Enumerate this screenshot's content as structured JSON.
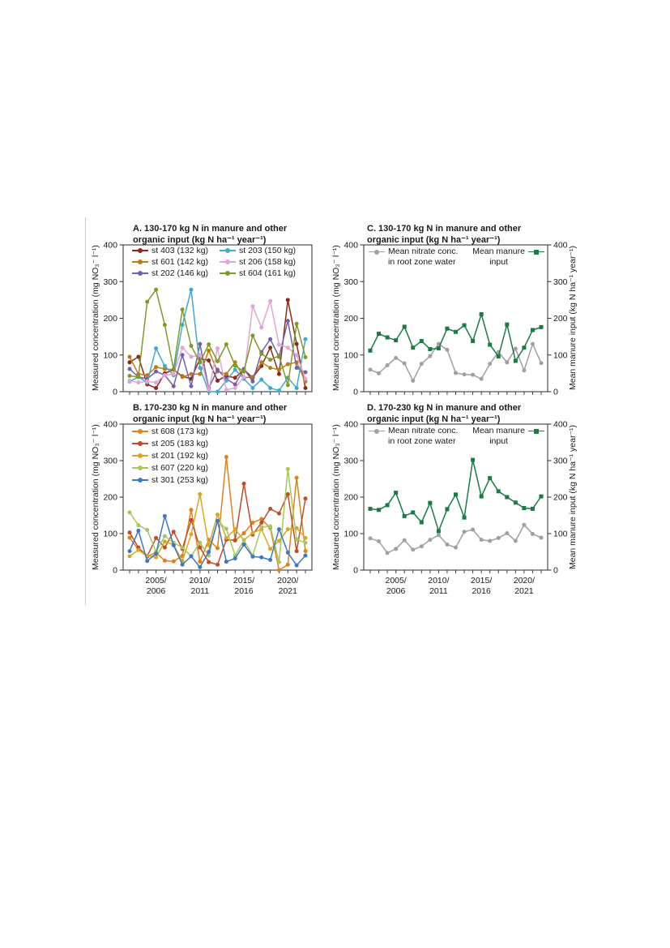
{
  "figure": {
    "background": "#ffffff",
    "axis_color": "#3d3d3d",
    "text_color": "#1a1a1a"
  },
  "chart_data": [
    {
      "panel": "A",
      "type": "line",
      "title_line1": "A. 130-170 kg N in manure and other",
      "title_line2": "organic input (kg N ha⁻¹ year⁻¹)",
      "ylabel": "Measured concentration (mg NO₃⁻ l⁻¹)",
      "ylim": [
        0,
        400
      ],
      "yticks": [
        0,
        100,
        200,
        300,
        400
      ],
      "n_points": 21,
      "x_labels_visible": false,
      "x_tick_labels": [],
      "legend_position": "top-inside-two-columns",
      "series": [
        {
          "name": "st 403 (132 kg)",
          "color": "#8B2A1A",
          "marker": "circle",
          "values": [
            80,
            95,
            20,
            10,
            50,
            60,
            42,
            35,
            90,
            85,
            30,
            43,
            38,
            60,
            38,
            70,
            120,
            48,
            250,
            130,
            10
          ]
        },
        {
          "name": "st 601 (142 kg)",
          "color": "#BE7B15",
          "marker": "circle",
          "values": [
            95,
            48,
            45,
            67,
            62,
            60,
            40,
            48,
            48,
            112,
            55,
            48,
            80,
            38,
            40,
            80,
            65,
            60,
            75,
            80,
            28
          ]
        },
        {
          "name": "st 202 (146 kg)",
          "color": "#7560A8",
          "marker": "circle",
          "values": [
            62,
            40,
            35,
            55,
            45,
            15,
            100,
            15,
            130,
            10,
            60,
            35,
            20,
            62,
            28,
            108,
            143,
            95,
            193,
            65,
            53
          ]
        },
        {
          "name": "st 203 (150 kg)",
          "color": "#41A9CE",
          "marker": "circle",
          "values": [
            28,
            40,
            25,
            118,
            70,
            45,
            182,
            278,
            65,
            0,
            0,
            30,
            60,
            35,
            10,
            33,
            10,
            3,
            38,
            10,
            143
          ]
        },
        {
          "name": "st 206 (158 kg)",
          "color": "#E2A6D6",
          "marker": "circle",
          "values": [
            30,
            25,
            28,
            25,
            45,
            48,
            120,
            95,
            100,
            5,
            118,
            5,
            10,
            40,
            233,
            175,
            247,
            128,
            120,
            100,
            35
          ]
        },
        {
          "name": "st 604 (161 kg)",
          "color": "#7E9B26",
          "marker": "circle",
          "values": [
            43,
            40,
            245,
            278,
            182,
            61,
            224,
            125,
            80,
            129,
            83,
            129,
            71,
            55,
            153,
            103,
            87,
            98,
            18,
            185,
            94
          ]
        }
      ]
    },
    {
      "panel": "B",
      "type": "line",
      "title_line1": "B. 170-230 kg N in manure and other",
      "title_line2": "organic input (kg N ha⁻¹ year⁻¹)",
      "ylabel": "Measured concentration (mg NO₃⁻ l⁻¹)",
      "ylim": [
        0,
        400
      ],
      "yticks": [
        0,
        100,
        200,
        300,
        400
      ],
      "n_points": 21,
      "x_labels_visible": true,
      "x_tick_labels": [
        {
          "index": 3,
          "line1": "2005/",
          "line2": "2006"
        },
        {
          "index": 8,
          "line1": "2010/",
          "line2": "2011"
        },
        {
          "index": 13,
          "line1": "2015/",
          "line2": "2016"
        },
        {
          "index": 18,
          "line1": "2020/",
          "line2": "2021"
        }
      ],
      "legend_position": "top-left-inside-one-column",
      "series": [
        {
          "name": "st 608 (173 kg)",
          "color": "#E08119",
          "marker": "circle",
          "values": [
            89,
            56,
            37,
            48,
            26,
            24,
            39,
            165,
            23,
            83,
            60,
            310,
            81,
            101,
            130,
            140,
            115,
            0,
            15,
            253,
            52
          ]
        },
        {
          "name": "st 205 (183 kg)",
          "color": "#C64A28",
          "marker": "circle",
          "values": [
            103,
            62,
            38,
            88,
            62,
            105,
            58,
            137,
            62,
            22,
            15,
            83,
            82,
            237,
            97,
            130,
            168,
            155,
            208,
            52,
            196
          ]
        },
        {
          "name": "st 201 (192 kg)",
          "color": "#D8A723",
          "marker": "circle",
          "values": [
            38,
            55,
            40,
            35,
            78,
            70,
            25,
            98,
            208,
            68,
            152,
            88,
            112,
            82,
            102,
            112,
            58,
            80,
            112,
            115,
            88
          ]
        },
        {
          "name": "st 607 (220 kg)",
          "color": "#A5C85A",
          "marker": "circle",
          "values": [
            158,
            123,
            110,
            50,
            93,
            75,
            62,
            38,
            75,
            40,
            135,
            113,
            40,
            82,
            40,
            118,
            120,
            22,
            277,
            84,
            75
          ]
        },
        {
          "name": "st 301 (253 kg)",
          "color": "#3F78C1",
          "marker": "circle",
          "values": [
            52,
            108,
            25,
            45,
            148,
            68,
            15,
            38,
            8,
            50,
            135,
            23,
            32,
            70,
            37,
            35,
            28,
            112,
            48,
            13,
            40
          ]
        }
      ]
    },
    {
      "panel": "C",
      "type": "line",
      "title_line1": "C. 130-170 kg N in manure and other",
      "title_line2": "organic input (kg N ha⁻¹ year⁻¹)",
      "ylabel": "Measured concentration (mg NO₃⁻ l⁻¹)",
      "y2label": "Mean manure input (kg N ha⁻¹ year⁻¹)",
      "ylim": [
        0,
        400
      ],
      "yticks": [
        0,
        100,
        200,
        300,
        400
      ],
      "n_points": 21,
      "x_labels_visible": false,
      "x_tick_labels": [],
      "legend_position": "top-inside-split",
      "series": [
        {
          "name": "Mean nitrate conc. in root zone water",
          "name_lines": [
            "Mean nitrate conc.",
            "in root zone water"
          ],
          "color": "#A0A0A0",
          "marker": "circle",
          "values": [
            60,
            50,
            72,
            92,
            77,
            30,
            76,
            97,
            130,
            114,
            51,
            47,
            46,
            35,
            76,
            108,
            80,
            117,
            58,
            130,
            78
          ]
        },
        {
          "name": "Mean manure input",
          "name_lines": [
            "Mean manure",
            "input"
          ],
          "color": "#1B7B45",
          "marker": "square",
          "values": [
            112,
            158,
            148,
            140,
            177,
            120,
            138,
            116,
            118,
            172,
            163,
            181,
            138,
            211,
            128,
            96,
            183,
            84,
            120,
            168,
            176
          ]
        }
      ]
    },
    {
      "panel": "D",
      "type": "line",
      "title_line1": "D. 170-230 kg N in manure and other",
      "title_line2": "organic input (kg N ha⁻¹ year⁻¹)",
      "ylabel": "Measured concentration (mg NO₃⁻ l⁻¹)",
      "y2label": "Mean manure input (kg N ha⁻¹ year⁻¹)",
      "ylim": [
        0,
        400
      ],
      "yticks": [
        0,
        100,
        200,
        300,
        400
      ],
      "n_points": 21,
      "x_labels_visible": true,
      "x_tick_labels": [
        {
          "index": 3,
          "line1": "2005/",
          "line2": "2006"
        },
        {
          "index": 8,
          "line1": "2010/",
          "line2": "2011"
        },
        {
          "index": 13,
          "line1": "2015/",
          "line2": "2016"
        },
        {
          "index": 18,
          "line1": "2020/",
          "line2": "2021"
        }
      ],
      "legend_position": "top-inside-split",
      "series": [
        {
          "name": "Mean nitrate conc. in root zone water",
          "name_lines": [
            "Mean nitrate conc.",
            "in root zone water"
          ],
          "color": "#A0A0A0",
          "marker": "circle",
          "values": [
            87,
            79,
            47,
            58,
            82,
            56,
            65,
            83,
            96,
            70,
            62,
            105,
            111,
            83,
            80,
            88,
            101,
            80,
            124,
            99,
            89
          ]
        },
        {
          "name": "Mean manure input",
          "name_lines": [
            "Mean manure",
            "input"
          ],
          "color": "#1B7B45",
          "marker": "square",
          "values": [
            168,
            165,
            178,
            212,
            148,
            158,
            131,
            184,
            107,
            167,
            207,
            144,
            302,
            202,
            252,
            216,
            200,
            185,
            170,
            168,
            202
          ]
        }
      ]
    }
  ]
}
